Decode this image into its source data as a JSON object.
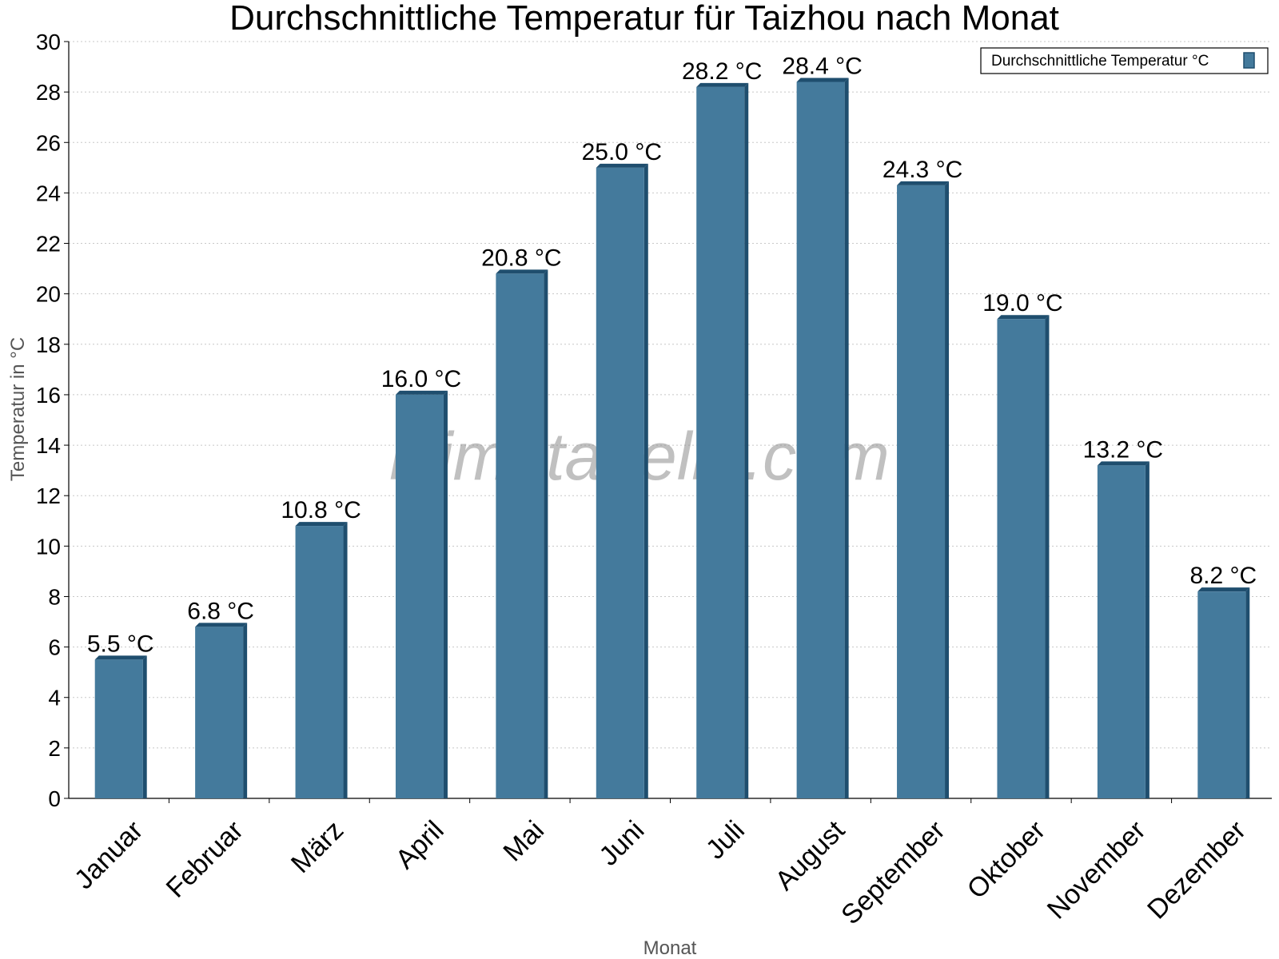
{
  "watermark": "klimatabelle.com",
  "chart_data": {
    "type": "bar",
    "title": "Durchschnittliche Temperatur für Taizhou nach Monat",
    "xlabel": "Monat",
    "ylabel": "Temperatur in °C",
    "ylim": [
      0,
      30
    ],
    "ytick_step": 2,
    "grid": true,
    "legend_position": "top-right",
    "value_suffix": " °C",
    "categories": [
      "Januar",
      "Februar",
      "März",
      "April",
      "Mai",
      "Juni",
      "Juli",
      "August",
      "September",
      "Oktober",
      "November",
      "Dezember"
    ],
    "series": [
      {
        "name": "Durchschnittliche Temperatur °C",
        "color": "#447a9c",
        "values": [
          5.5,
          6.8,
          10.8,
          16.0,
          20.8,
          25.0,
          28.2,
          28.4,
          24.3,
          19.0,
          13.2,
          8.2
        ]
      }
    ]
  }
}
